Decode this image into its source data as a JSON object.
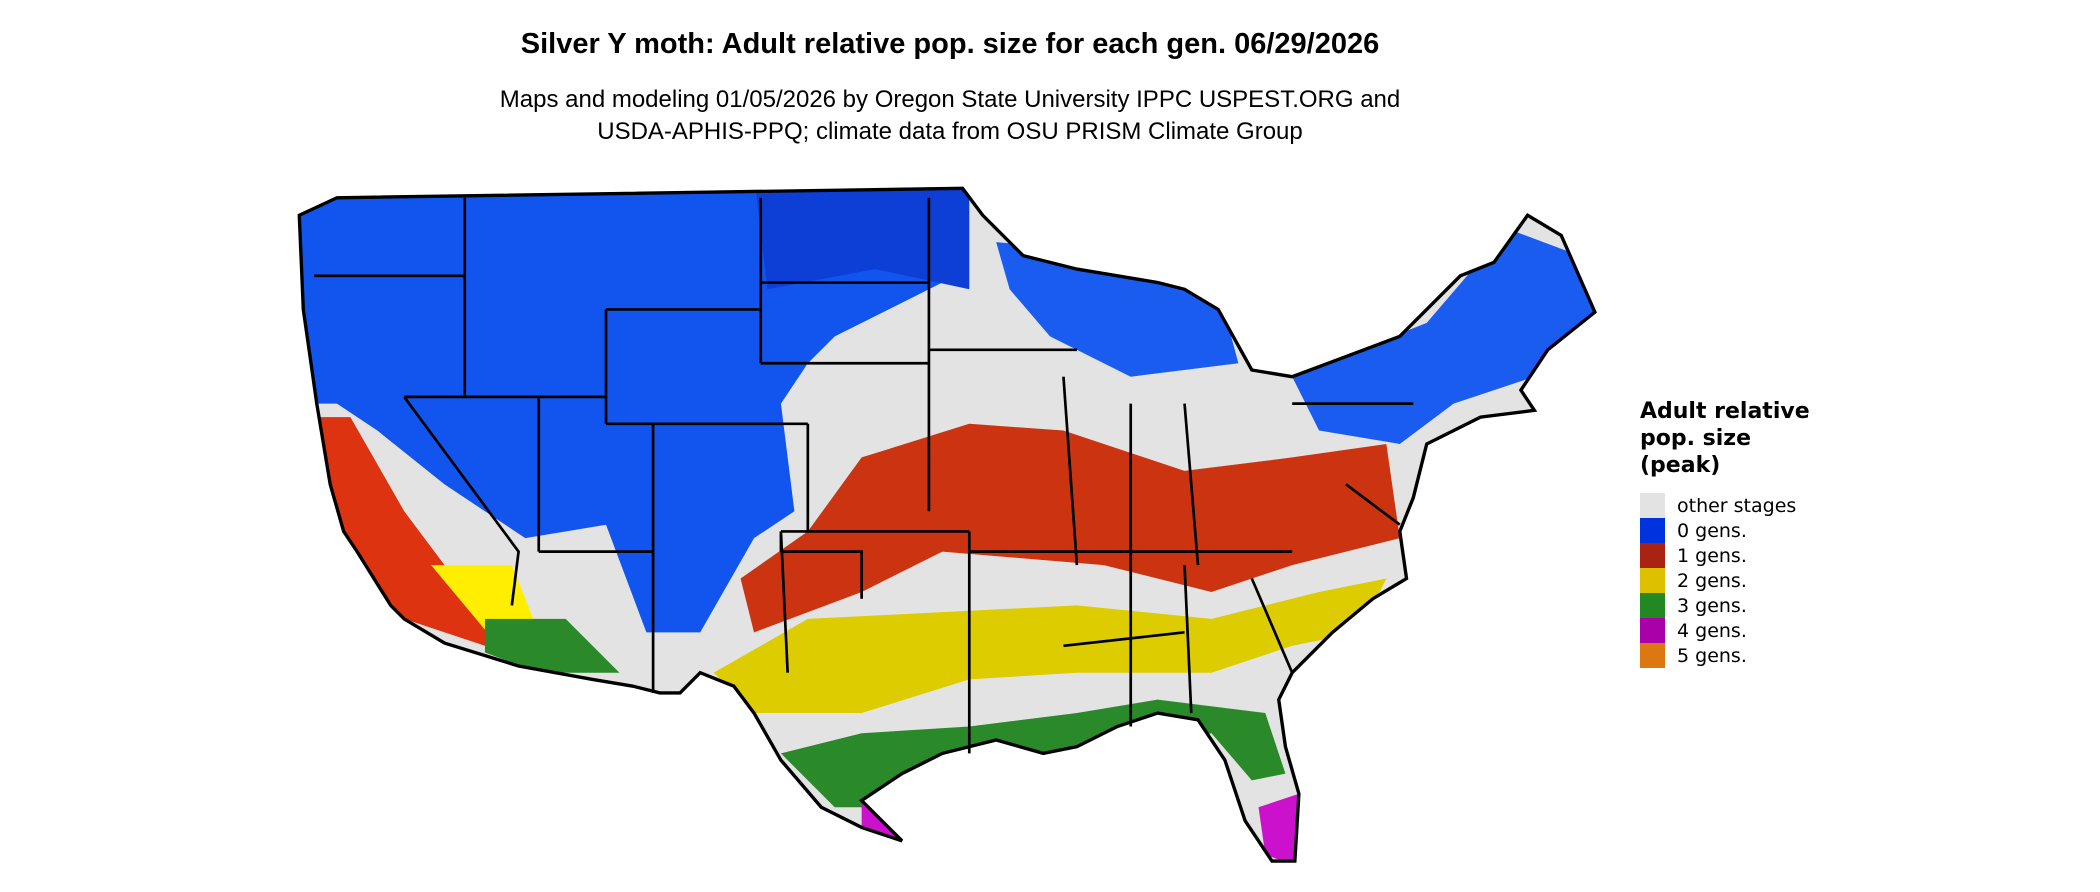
{
  "title": "Silver Y moth: Adult relative pop. size for each gen. 06/29/2026",
  "subtitle_line1": "Maps and modeling 01/05/2026 by Oregon State University IPPC USPEST.ORG and",
  "subtitle_line2": "USDA-APHIS-PPQ; climate data from OSU PRISM Climate Group",
  "legend": {
    "title_lines": [
      "Adult relative",
      "pop. size",
      "(peak)"
    ],
    "items": [
      {
        "label": "other stages",
        "color": "#e3e3e3"
      },
      {
        "label": "0 gens.",
        "color": "#0033dd"
      },
      {
        "label": "1 gens.",
        "color": "#aa2211"
      },
      {
        "label": "2 gens.",
        "color": "#ddc000"
      },
      {
        "label": "3 gens.",
        "color": "#228822"
      },
      {
        "label": "4 gens.",
        "color": "#aa00aa"
      },
      {
        "label": "5 gens.",
        "color": "#dd7711"
      }
    ]
  }
}
